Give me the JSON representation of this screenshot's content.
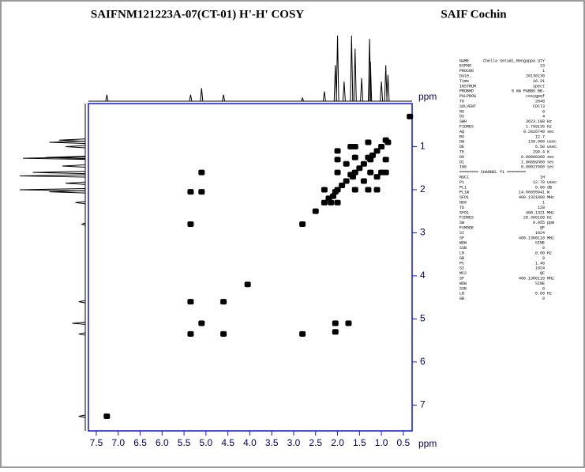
{
  "header": {
    "title": "SAIFNM121223A-07(CT-01) H'-H' COSY",
    "org": "SAIF Cochin"
  },
  "chart_data": {
    "type": "cosy",
    "xlabel": "ppm",
    "ylabel": "ppm",
    "xlim": [
      7.68,
      0.3
    ],
    "ylim": [
      0,
      7.6
    ],
    "xticks": [
      7.5,
      {
        "value": 7,
        "label": "7.0"
      },
      6.5,
      {
        "value": 6,
        "label": "6.0"
      },
      5.5,
      {
        "value": 5,
        "label": "5.0"
      },
      4.5,
      {
        "value": 4,
        "label": "4.0"
      },
      3.5,
      {
        "value": 3,
        "label": "3.0"
      },
      2.5,
      {
        "value": 2,
        "label": "2.0"
      },
      1.5,
      {
        "value": 1,
        "label": "1.0"
      },
      0.5
    ],
    "yticks": [
      1,
      2,
      3,
      4,
      5,
      6,
      7
    ],
    "axis_color": "#1010ff",
    "color": "#000000",
    "projection": {
      "x": [
        7.26,
        5.35,
        5.1,
        4.6,
        2.8,
        2.3,
        2.05,
        2.0,
        1.85,
        1.68,
        1.6,
        1.45,
        1.27,
        1.25,
        1.0,
        0.9,
        0.85
      ],
      "values": [
        10,
        10,
        20,
        10,
        5,
        15,
        55,
        100,
        30,
        100,
        80,
        35,
        95,
        60,
        30,
        55,
        40
      ]
    },
    "points": {
      "x": [
        0.35,
        0.85,
        0.9,
        1.0,
        1.1,
        1.2,
        1.25,
        1.3,
        1.4,
        1.5,
        1.6,
        1.65,
        1.7,
        1.8,
        1.9,
        2.0,
        2.05,
        2.1,
        2.2,
        2.3,
        2.5,
        2.8,
        1.25,
        1.3,
        1.6,
        2.0,
        2.0,
        1.6,
        1.0,
        1.6,
        0.9,
        1.3,
        1.1,
        2.0,
        1.4,
        1.8,
        2.3,
        2.0,
        0.9,
        1.1,
        1.7,
        2.15,
        5.35,
        5.1,
        5.35,
        5.1,
        5.35,
        5.1,
        4.6,
        4.6,
        5.35,
        2.05,
        2.8,
        1.75,
        2.05,
        4.05,
        7.26
      ],
      "y": [
        0.3,
        0.9,
        0.85,
        1.0,
        1.1,
        1.2,
        1.3,
        1.25,
        1.4,
        1.5,
        1.6,
        1.7,
        1.65,
        1.8,
        1.9,
        2.0,
        2.05,
        2.15,
        2.2,
        2.3,
        2.5,
        2.8,
        1.6,
        2.0,
        1.25,
        1.3,
        1.6,
        2.0,
        1.6,
        1.0,
        1.3,
        0.9,
        2.0,
        1.1,
        1.8,
        1.4,
        2.0,
        2.3,
        1.6,
        1.7,
        1.0,
        2.3,
        2.05,
        2.05,
        2.8,
        1.6,
        5.35,
        5.1,
        4.6,
        5.35,
        4.6,
        5.1,
        5.35,
        5.1,
        5.3,
        4.2,
        7.26
      ]
    }
  },
  "parameters": {
    "rows": [
      [
        "NAME",
        "Chella Setumi,Rengappa UTY",
        ""
      ],
      [
        "EXPNO",
        "13",
        ""
      ],
      [
        "PROCNO",
        "1",
        ""
      ],
      [
        "Date_",
        "20130130",
        ""
      ],
      [
        "Time",
        "16.31",
        ""
      ],
      [
        "INSTRUM",
        "spect",
        ""
      ],
      [
        "PROBHD",
        "5 mm PABBO BB-",
        ""
      ],
      [
        "PULPROG",
        "cosygpqf",
        ""
      ],
      [
        "TD",
        "2048",
        ""
      ],
      [
        "SOLVENT",
        "CDCl3",
        ""
      ],
      [
        "NS",
        "8",
        ""
      ],
      [
        "DS",
        "4",
        ""
      ],
      [
        "SWH",
        "3623.188",
        "Hz"
      ],
      [
        "FIDRES",
        "1.769135",
        "Hz"
      ],
      [
        "AQ",
        "0.2826740",
        "sec"
      ],
      [
        "RG",
        "12.7",
        ""
      ],
      [
        "DW",
        "138.000",
        "usec"
      ],
      [
        "DE",
        "6.50",
        "usec"
      ],
      [
        "TE",
        "299.4",
        "K"
      ],
      [
        "D0",
        "0.00000300",
        "sec"
      ],
      [
        "D1",
        "1.96859300",
        "sec"
      ],
      [
        "IN0",
        "0.00027600",
        "sec"
      ],
      [
        "======== CHANNEL f1 ========",
        "",
        ""
      ],
      [
        "NUC1",
        "1H",
        ""
      ],
      [
        "P1",
        "12.70",
        "usec"
      ],
      [
        "PL1",
        "0.00",
        "dB"
      ],
      [
        "PL1W",
        "14.06655941",
        "W"
      ],
      [
        "SFO1",
        "400.1321800",
        "MHz"
      ],
      [
        "ND0",
        "1",
        ""
      ],
      [
        "TD",
        "128",
        ""
      ],
      [
        "SFO1",
        "400.1321",
        "MHz"
      ],
      [
        "FIDRES",
        "28.306160",
        "Hz"
      ],
      [
        "SW",
        "9.055",
        "ppm"
      ],
      [
        "FnMODE",
        "QF",
        ""
      ],
      [
        "SI",
        "1024",
        ""
      ],
      [
        "SF",
        "400.1300110",
        "MHz"
      ],
      [
        "WDW",
        "SINE",
        ""
      ],
      [
        "SSB",
        "0",
        ""
      ],
      [
        "LB",
        "0.00",
        "Hz"
      ],
      [
        "GB",
        "0",
        ""
      ],
      [
        "PC",
        "1.40",
        ""
      ],
      [
        "SI",
        "1024",
        ""
      ],
      [
        "MC2",
        "QF",
        ""
      ],
      [
        "SF",
        "400.1300110",
        "MHz"
      ],
      [
        "WDW",
        "SINE",
        ""
      ],
      [
        "SSB",
        "0",
        ""
      ],
      [
        "LB",
        "0.00",
        "Hz"
      ],
      [
        "GB",
        "0",
        ""
      ]
    ]
  }
}
